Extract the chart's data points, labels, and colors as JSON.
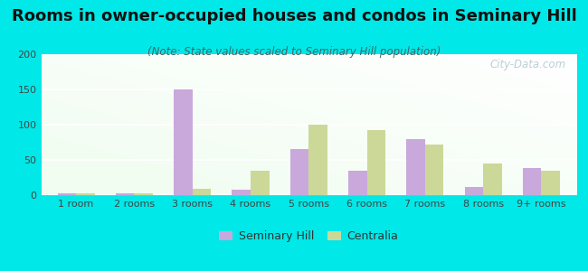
{
  "title": "Rooms in owner-occupied houses and condos in Seminary Hill",
  "subtitle": "(Note: State values scaled to Seminary Hill population)",
  "categories": [
    "1 room",
    "2 rooms",
    "3 rooms",
    "4 rooms",
    "5 rooms",
    "6 rooms",
    "7 rooms",
    "8 rooms",
    "9+ rooms"
  ],
  "seminary_hill": [
    3,
    2,
    150,
    8,
    65,
    35,
    80,
    12,
    38
  ],
  "centralia": [
    2,
    2,
    9,
    35,
    100,
    92,
    72,
    45,
    35
  ],
  "seminary_color": "#c9a8dc",
  "centralia_color": "#ccd898",
  "background_outer": "#00e8e8",
  "ylim": [
    0,
    200
  ],
  "yticks": [
    0,
    50,
    100,
    150,
    200
  ],
  "legend_seminary": "Seminary Hill",
  "legend_centralia": "Centralia",
  "watermark": "City-Data.com",
  "title_fontsize": 13,
  "subtitle_fontsize": 8.5,
  "tick_fontsize": 8,
  "legend_fontsize": 9
}
